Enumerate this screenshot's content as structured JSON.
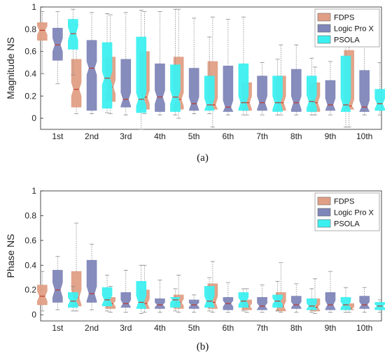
{
  "chart_data": [
    {
      "type": "box",
      "panel_label": "(a)",
      "ylabel": "Magnitude NS",
      "ylim": [
        -0.1,
        1
      ],
      "yticks": [
        "0",
        "0.2",
        "0.4",
        "0.6",
        "0.8",
        "1"
      ],
      "categories": [
        "1st",
        "2nd",
        "3rd",
        "4th",
        "5th",
        "6th",
        "7th",
        "8th",
        "9th",
        "10th"
      ],
      "legend": {
        "placement": "top-right"
      },
      "series": [
        {
          "name": "FDPS",
          "color": "#e09f85",
          "boxes": [
            {
              "wl": 0.4,
              "q1": 0.7,
              "med": 0.79,
              "q3": 0.86,
              "wh": 0.96
            },
            {
              "wl": 0.04,
              "q1": 0.1,
              "med": 0.26,
              "q3": 0.53,
              "wh": 0.84
            },
            {
              "wl": 0.04,
              "q1": 0.15,
              "med": 0.28,
              "q3": 0.55,
              "wh": 0.93
            },
            {
              "wl": 0.04,
              "q1": 0.08,
              "med": 0.19,
              "q3": 0.6,
              "wh": 0.96
            },
            {
              "wl": 0.0,
              "q1": 0.08,
              "med": 0.17,
              "q3": 0.55,
              "wh": 0.98
            },
            {
              "wl": -0.08,
              "q1": 0.08,
              "med": 0.12,
              "q3": 0.51,
              "wh": 0.91
            },
            {
              "wl": 0.03,
              "q1": 0.07,
              "med": 0.14,
              "q3": 0.32,
              "wh": 0.37
            },
            {
              "wl": 0.03,
              "q1": 0.07,
              "med": 0.14,
              "q3": 0.38,
              "wh": 0.66
            },
            {
              "wl": 0.03,
              "q1": 0.06,
              "med": 0.14,
              "q3": 0.32,
              "wh": 0.46
            },
            {
              "wl": -0.08,
              "q1": 0.08,
              "med": 0.11,
              "q3": 0.61,
              "wh": 0.97
            }
          ]
        },
        {
          "name": "Logic Pro X",
          "color": "#7f86b8",
          "boxes": [
            {
              "wl": 0.31,
              "q1": 0.52,
              "med": 0.66,
              "q3": 0.81,
              "wh": 0.96
            },
            {
              "wl": 0.04,
              "q1": 0.07,
              "med": 0.45,
              "q3": 0.7,
              "wh": 0.95
            },
            {
              "wl": 0.03,
              "q1": 0.1,
              "med": 0.17,
              "q3": 0.53,
              "wh": 0.95
            },
            {
              "wl": 0.03,
              "q1": 0.06,
              "med": 0.19,
              "q3": 0.49,
              "wh": 0.96
            },
            {
              "wl": 0.04,
              "q1": 0.07,
              "med": 0.13,
              "q3": 0.45,
              "wh": 0.9
            },
            {
              "wl": 0.03,
              "q1": 0.06,
              "med": 0.1,
              "q3": 0.47,
              "wh": 0.89
            },
            {
              "wl": 0.03,
              "q1": 0.07,
              "med": 0.14,
              "q3": 0.38,
              "wh": 0.5
            },
            {
              "wl": 0.03,
              "q1": 0.06,
              "med": 0.14,
              "q3": 0.44,
              "wh": 0.66
            },
            {
              "wl": 0.03,
              "q1": 0.07,
              "med": 0.12,
              "q3": 0.34,
              "wh": 0.51
            },
            {
              "wl": 0.03,
              "q1": 0.06,
              "med": 0.1,
              "q3": 0.43,
              "wh": 0.92
            }
          ]
        },
        {
          "name": "PSOLA",
          "color": "#3df0f0",
          "boxes": [
            {
              "wl": 0.39,
              "q1": 0.62,
              "med": 0.76,
              "q3": 0.89,
              "wh": 0.98
            },
            {
              "wl": 0.05,
              "q1": 0.09,
              "med": 0.36,
              "q3": 0.68,
              "wh": 0.94
            },
            {
              "wl": -0.1,
              "q1": 0.05,
              "med": 0.17,
              "q3": 0.73,
              "wh": 0.97
            },
            {
              "wl": 0.03,
              "q1": 0.06,
              "med": 0.19,
              "q3": 0.48,
              "wh": 0.98
            },
            {
              "wl": 0.04,
              "q1": 0.07,
              "med": 0.12,
              "q3": 0.38,
              "wh": 0.73
            },
            {
              "wl": 0.03,
              "q1": 0.07,
              "med": 0.14,
              "q3": 0.49,
              "wh": 0.91
            },
            {
              "wl": 0.03,
              "q1": 0.06,
              "med": 0.14,
              "q3": 0.38,
              "wh": 0.53
            },
            {
              "wl": 0.03,
              "q1": 0.06,
              "med": 0.15,
              "q3": 0.38,
              "wh": 0.54
            },
            {
              "wl": -0.08,
              "q1": 0.06,
              "med": 0.12,
              "q3": 0.56,
              "wh": 0.95
            },
            {
              "wl": 0.03,
              "q1": 0.07,
              "med": 0.13,
              "q3": 0.26,
              "wh": 0.5
            }
          ]
        }
      ]
    },
    {
      "type": "box",
      "panel_label": "(b)",
      "ylabel": "Phase NS",
      "ylim": [
        -0.05,
        1
      ],
      "yticks": [
        "0",
        "0.2",
        "0.4",
        "0.6",
        "0.8",
        "1"
      ],
      "categories": [
        "1st",
        "2nd",
        "3rd",
        "4th",
        "5th",
        "6th",
        "7th",
        "8th",
        "9th",
        "10th"
      ],
      "legend": {
        "placement": "top-right"
      },
      "series": [
        {
          "name": "FDPS",
          "color": "#e09f85",
          "boxes": [
            {
              "wl": 0.03,
              "q1": 0.08,
              "med": 0.15,
              "q3": 0.24,
              "wh": 0.35
            },
            {
              "wl": 0.03,
              "q1": 0.07,
              "med": 0.14,
              "q3": 0.35,
              "wh": 0.74
            },
            {
              "wl": 0.02,
              "q1": 0.05,
              "med": 0.09,
              "q3": 0.14,
              "wh": 0.23
            },
            {
              "wl": 0.02,
              "q1": 0.05,
              "med": 0.09,
              "q3": 0.2,
              "wh": 0.4
            },
            {
              "wl": 0.02,
              "q1": 0.05,
              "med": 0.1,
              "q3": 0.16,
              "wh": 0.32
            },
            {
              "wl": 0.02,
              "q1": 0.05,
              "med": 0.1,
              "q3": 0.25,
              "wh": 0.43
            },
            {
              "wl": 0.02,
              "q1": 0.04,
              "med": 0.07,
              "q3": 0.12,
              "wh": 0.21
            },
            {
              "wl": 0.02,
              "q1": 0.03,
              "med": 0.07,
              "q3": 0.18,
              "wh": 0.42
            },
            {
              "wl": 0.01,
              "q1": 0.03,
              "med": 0.06,
              "q3": 0.13,
              "wh": 0.29
            },
            {
              "wl": 0.02,
              "q1": 0.04,
              "med": 0.05,
              "q3": 0.09,
              "wh": 0.13
            }
          ]
        },
        {
          "name": "Logic Pro X",
          "color": "#7f86b8",
          "boxes": [
            {
              "wl": 0.04,
              "q1": 0.1,
              "med": 0.2,
              "q3": 0.36,
              "wh": 0.47
            },
            {
              "wl": 0.04,
              "q1": 0.1,
              "med": 0.17,
              "q3": 0.44,
              "wh": 0.57
            },
            {
              "wl": 0.02,
              "q1": 0.06,
              "med": 0.09,
              "q3": 0.18,
              "wh": 0.36
            },
            {
              "wl": 0.02,
              "q1": 0.05,
              "med": 0.08,
              "q3": 0.13,
              "wh": 0.28
            },
            {
              "wl": 0.02,
              "q1": 0.05,
              "med": 0.08,
              "q3": 0.12,
              "wh": 0.16
            },
            {
              "wl": 0.02,
              "q1": 0.04,
              "med": 0.09,
              "q3": 0.14,
              "wh": 0.26
            },
            {
              "wl": 0.02,
              "q1": 0.04,
              "med": 0.07,
              "q3": 0.14,
              "wh": 0.24
            },
            {
              "wl": 0.02,
              "q1": 0.05,
              "med": 0.08,
              "q3": 0.15,
              "wh": 0.25
            },
            {
              "wl": 0.02,
              "q1": 0.04,
              "med": 0.08,
              "q3": 0.18,
              "wh": 0.35
            },
            {
              "wl": 0.02,
              "q1": 0.05,
              "med": 0.08,
              "q3": 0.15,
              "wh": 0.22
            }
          ]
        },
        {
          "name": "PSOLA",
          "color": "#3df0f0",
          "boxes": [
            {
              "wl": 0.03,
              "q1": 0.06,
              "med": 0.11,
              "q3": 0.18,
              "wh": 0.23
            },
            {
              "wl": 0.03,
              "q1": 0.07,
              "med": 0.12,
              "q3": 0.22,
              "wh": 0.32
            },
            {
              "wl": 0.01,
              "q1": 0.05,
              "med": 0.1,
              "q3": 0.27,
              "wh": 0.4
            },
            {
              "wl": 0.03,
              "q1": 0.06,
              "med": 0.12,
              "q3": 0.14,
              "wh": 0.21
            },
            {
              "wl": 0.03,
              "q1": 0.06,
              "med": 0.11,
              "q3": 0.23,
              "wh": 0.3
            },
            {
              "wl": 0.03,
              "q1": 0.06,
              "med": 0.11,
              "q3": 0.18,
              "wh": 0.21
            },
            {
              "wl": 0.03,
              "q1": 0.06,
              "med": 0.11,
              "q3": 0.16,
              "wh": 0.27
            },
            {
              "wl": 0.02,
              "q1": 0.04,
              "med": 0.07,
              "q3": 0.13,
              "wh": 0.21
            },
            {
              "wl": 0.02,
              "q1": 0.04,
              "med": 0.08,
              "q3": 0.14,
              "wh": 0.22
            },
            {
              "wl": 0.02,
              "q1": 0.04,
              "med": 0.07,
              "q3": 0.1,
              "wh": 0.12
            }
          ]
        }
      ]
    }
  ]
}
